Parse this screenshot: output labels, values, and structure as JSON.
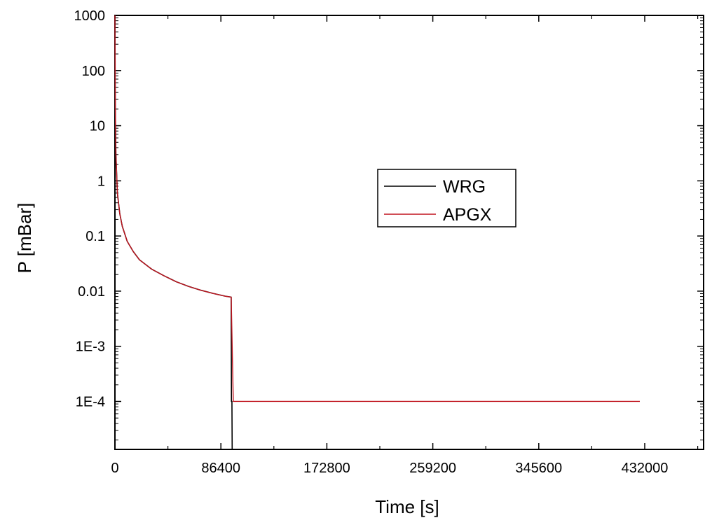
{
  "chart_data": {
    "type": "line",
    "title": "",
    "xlabel": "Time [s]",
    "ylabel": "P [mBar]",
    "xlim": [
      0,
      480000
    ],
    "ylim": [
      1.35e-05,
      1000
    ],
    "yscale": "log",
    "grid": false,
    "legend_position": "center",
    "x_ticks": [
      0,
      86400,
      172800,
      259200,
      345600,
      432000
    ],
    "x_tick_labels": [
      "0",
      "86400",
      "172800",
      "259200",
      "345600",
      "432000"
    ],
    "y_ticks": [
      1000,
      100,
      10,
      1,
      0.1,
      0.01,
      0.001,
      0.0001
    ],
    "y_tick_labels": [
      "1000",
      "100",
      "10",
      "1",
      "0.1",
      "0.01",
      "1E-3",
      "1E-4"
    ],
    "series": [
      {
        "name": "WRG",
        "color": "#000000",
        "x": [
          0,
          300,
          800,
          2000,
          4000,
          6000,
          10000,
          15000,
          20000,
          30000,
          40000,
          50000,
          60000,
          70000,
          80000,
          90000,
          94800,
          95000,
          95400,
          95600
        ],
        "y": [
          1000,
          20,
          3,
          0.6,
          0.25,
          0.15,
          0.08,
          0.052,
          0.037,
          0.025,
          0.019,
          0.0148,
          0.0122,
          0.0104,
          0.0091,
          0.0081,
          0.0078,
          0.0001,
          0.0001,
          1.35e-05
        ]
      },
      {
        "name": "APGX",
        "color": "#c0141e",
        "x": [
          0,
          300,
          800,
          2000,
          4000,
          6000,
          10000,
          15000,
          20000,
          30000,
          40000,
          50000,
          60000,
          70000,
          80000,
          90000,
          94800,
          96500,
          100000,
          200000,
          300000,
          400000,
          428000
        ],
        "y": [
          1000,
          20,
          3,
          0.6,
          0.25,
          0.15,
          0.08,
          0.052,
          0.037,
          0.025,
          0.019,
          0.0148,
          0.0122,
          0.0104,
          0.0091,
          0.0081,
          0.0078,
          0.0001,
          0.0001,
          0.0001,
          0.0001,
          0.0001,
          0.0001
        ]
      }
    ]
  }
}
